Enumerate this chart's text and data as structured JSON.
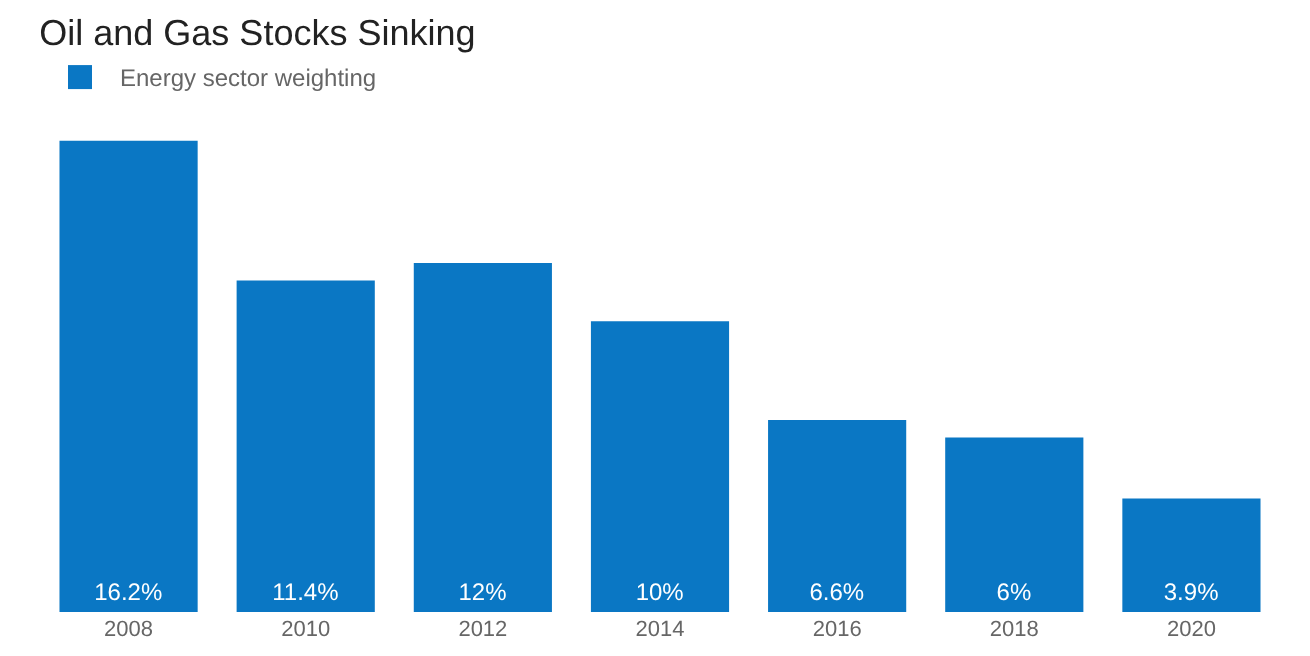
{
  "chart_data": {
    "type": "bar",
    "title": "Oil and Gas Stocks Sinking",
    "categories": [
      "2008",
      "2010",
      "2012",
      "2014",
      "2016",
      "2018",
      "2020"
    ],
    "series": [
      {
        "name": "Energy sector weighting",
        "color": "#0a77c4",
        "values": [
          16.2,
          11.4,
          12,
          10,
          6.6,
          6,
          3.9
        ],
        "value_labels": [
          "16.2%",
          "11.4%",
          "12%",
          "10%",
          "6.6%",
          "6%",
          "3.9%"
        ]
      }
    ],
    "legend": "top left",
    "grid": false,
    "tick_labels": "x"
  }
}
